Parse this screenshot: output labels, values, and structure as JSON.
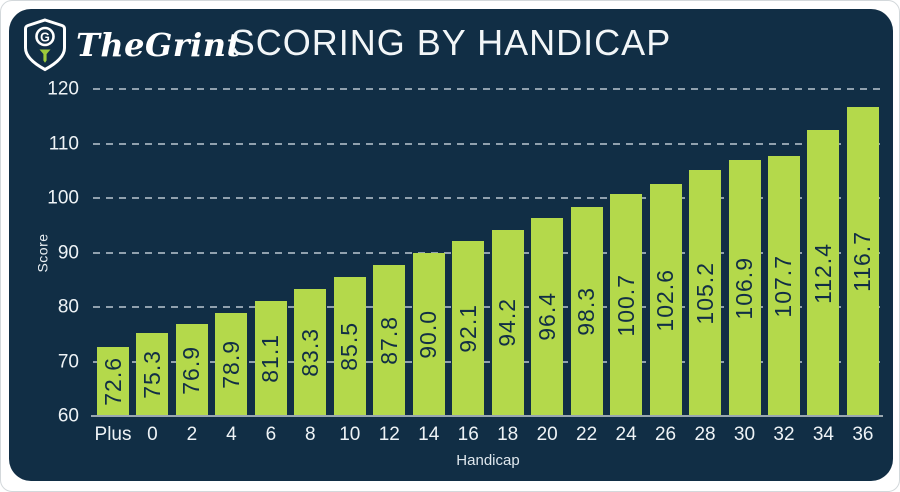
{
  "header": {
    "brand": "TheGrint",
    "logo_letter": "G",
    "title": "SCORING BY HANDICAP"
  },
  "colors": {
    "card_bg": "#112e45",
    "bar_fill": "#b4d94b",
    "bar_label_text": "#112e45",
    "tick_text": "#eef3f6",
    "grid_dash": "#dfe8ee",
    "baseline": "#9aa7b0",
    "logo_tee_green": "#9dcb3b",
    "title_text": "#f2f6f8"
  },
  "chart_data": {
    "type": "bar",
    "title": "SCORING BY HANDICAP",
    "xlabel": "Handicap",
    "ylabel": "Score",
    "categories": [
      "Plus",
      "0",
      "2",
      "4",
      "6",
      "8",
      "10",
      "12",
      "14",
      "16",
      "18",
      "20",
      "22",
      "24",
      "26",
      "28",
      "30",
      "32",
      "34",
      "36"
    ],
    "values": [
      72.6,
      75.3,
      76.9,
      78.9,
      81.1,
      83.3,
      85.5,
      87.8,
      90.0,
      92.1,
      94.2,
      96.4,
      98.3,
      100.7,
      102.6,
      105.2,
      106.9,
      107.7,
      112.4,
      116.7
    ],
    "value_labels": [
      "72.6",
      "75.3",
      "76.9",
      "78.9",
      "81.1",
      "83.3",
      "85.5",
      "87.8",
      "90.0",
      "92.1",
      "94.2",
      "96.4",
      "98.3",
      "100.7",
      "102.6",
      "105.2",
      "106.9",
      "107.7",
      "112.4",
      "116.7"
    ],
    "ylim": [
      60,
      120
    ],
    "yticks": [
      60,
      70,
      80,
      90,
      100,
      110,
      120
    ],
    "grid": "horizontal-dashed",
    "legend": "none",
    "bar_value_label_style": "rotated-90-inside-bar"
  }
}
